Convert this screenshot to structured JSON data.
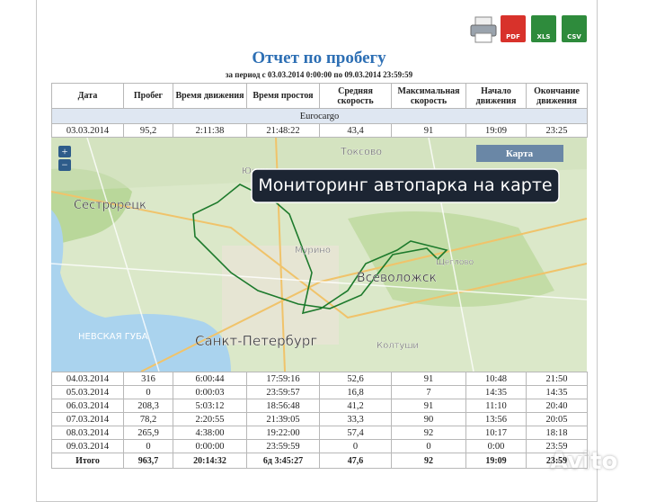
{
  "toolbar": {
    "buttons": [
      "PDF",
      "XLS",
      "CSV"
    ]
  },
  "report": {
    "title": "Отчет по пробегу",
    "subtitle": "за период с 03.03.2014 0:00:00 по 09.03.2014 23:59:59",
    "columns": [
      "Дата",
      "Пробег",
      "Время движения",
      "Время простоя",
      "Средняя скорость",
      "Максимальная скорость",
      "Начало движения",
      "Окончание движения"
    ],
    "group": "Eurocargo",
    "rows": [
      [
        "03.03.2014",
        "95,2",
        "2:11:38",
        "21:48:22",
        "43,4",
        "91",
        "19:09",
        "23:25"
      ],
      [
        "04.03.2014",
        "316",
        "6:00:44",
        "17:59:16",
        "52,6",
        "91",
        "10:48",
        "21:50"
      ],
      [
        "05.03.2014",
        "0",
        "0:00:03",
        "23:59:57",
        "16,8",
        "7",
        "14:35",
        "14:35"
      ],
      [
        "06.03.2014",
        "208,3",
        "5:03:12",
        "18:56:48",
        "41,2",
        "91",
        "11:10",
        "20:40"
      ],
      [
        "07.03.2014",
        "78,2",
        "2:20:55",
        "21:39:05",
        "33,3",
        "90",
        "13:56",
        "20:05"
      ],
      [
        "08.03.2014",
        "265,9",
        "4:38:00",
        "19:22:00",
        "57,4",
        "92",
        "10:17",
        "18:18"
      ],
      [
        "09.03.2014",
        "0",
        "0:00:00",
        "23:59:59",
        "0",
        "0",
        "0:00",
        "23:59"
      ]
    ],
    "total": [
      "Итого",
      "963,7",
      "20:14:32",
      "6д 3:45:27",
      "47,6",
      "92",
      "19:09",
      "23:59"
    ]
  },
  "map": {
    "button": "Карта",
    "zoom": [
      "+",
      "−"
    ],
    "labels": [
      "Токсово",
      "Юкки",
      "Сестрорецк",
      "Мурино",
      "Всеволожск",
      "НЕВСКАЯ ГУБА",
      "Санкт-Петербург",
      "Колтуши",
      "Щеглово"
    ],
    "banner": "Мониторинг автопарка на карте"
  },
  "watermark": "Avito"
}
